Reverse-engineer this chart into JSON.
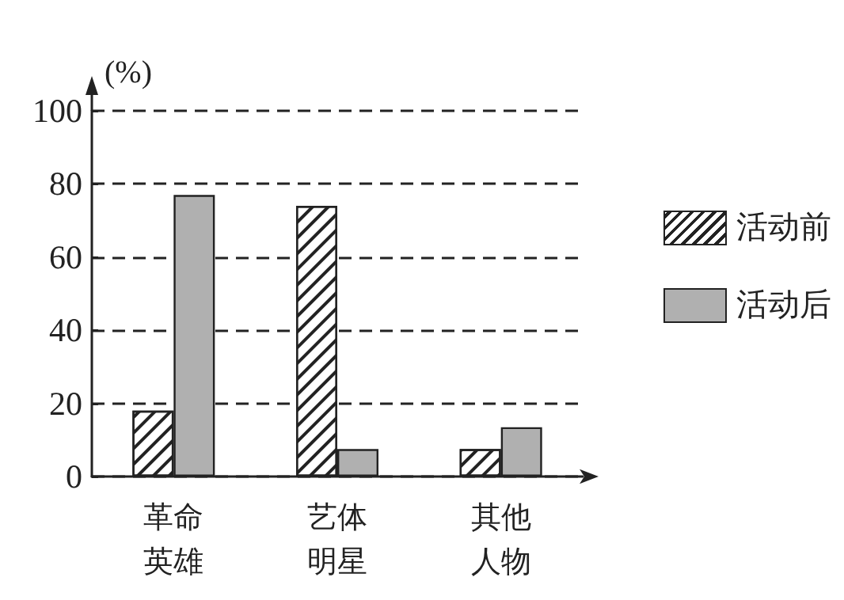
{
  "chart_data": {
    "type": "bar",
    "ylabel": "(%)",
    "categories": [
      "革命英雄",
      "艺体明星",
      "其他人物"
    ],
    "series": [
      {
        "name": "活动前",
        "color": "#ffffff",
        "values": [
          18,
          74,
          7.5
        ]
      },
      {
        "name": "活动后",
        "color": "#b0b0b0",
        "values": [
          77,
          7.5,
          13.5
        ]
      }
    ],
    "ylim": [
      0,
      100
    ],
    "yticks": [
      0,
      20,
      40,
      60,
      80,
      100
    ],
    "grid": "y",
    "legend": "right"
  }
}
